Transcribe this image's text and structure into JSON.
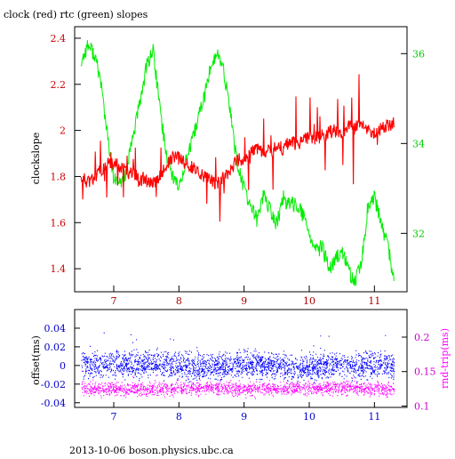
{
  "title": "clock (red) rtc (green) slopes",
  "footer": "2013-10-06  boson.physics.ubc.ca",
  "colors": {
    "clock": "#ff0000",
    "rtc": "#00ee00",
    "offset": "#0000ff",
    "roundtrip": "#ff00ff",
    "axes": "#000000"
  },
  "chart_data": [
    {
      "type": "line",
      "title": "clock (red) rtc (green) slopes",
      "ylabel": "clockslope",
      "xlim": [
        6.4,
        11.5
      ],
      "ylim": [
        1.3,
        2.45
      ],
      "y2lim": [
        30.7,
        36.6
      ],
      "x_ticks": [
        7,
        8,
        9,
        10,
        11
      ],
      "y_ticks": [
        1.4,
        1.6,
        1.8,
        2.0,
        2.2,
        2.4
      ],
      "y_tick_labels": [
        "1.4",
        "1.6",
        "1.8",
        "2",
        "2.2",
        "2.4"
      ],
      "y2_ticks": [
        32,
        34,
        36
      ],
      "grid": false,
      "series": [
        {
          "name": "clock",
          "axis": "left",
          "x": [
            6.5,
            6.6,
            6.7,
            6.8,
            6.9,
            7.0,
            7.1,
            7.2,
            7.3,
            7.4,
            7.5,
            7.6,
            7.7,
            7.8,
            7.9,
            8.0,
            8.1,
            8.2,
            8.3,
            8.4,
            8.5,
            8.6,
            8.7,
            8.8,
            8.9,
            9.0,
            9.1,
            9.2,
            9.3,
            9.4,
            9.5,
            9.6,
            9.7,
            9.8,
            9.9,
            10.0,
            10.1,
            10.2,
            10.3,
            10.4,
            10.5,
            10.6,
            10.7,
            10.8,
            10.9,
            11.0,
            11.1,
            11.2,
            11.3
          ],
          "values": [
            1.8,
            1.77,
            1.79,
            1.83,
            1.85,
            1.86,
            1.84,
            1.82,
            1.81,
            1.79,
            1.78,
            1.77,
            1.8,
            1.84,
            1.88,
            1.88,
            1.86,
            1.84,
            1.82,
            1.8,
            1.78,
            1.77,
            1.8,
            1.84,
            1.87,
            1.88,
            1.9,
            1.92,
            1.9,
            1.91,
            1.93,
            1.92,
            1.95,
            1.94,
            1.96,
            1.97,
            1.96,
            1.98,
            1.99,
            2.0,
            1.99,
            2.02,
            2.01,
            2.03,
            2.0,
            1.99,
            2.01,
            2.02,
            2.03
          ]
        },
        {
          "name": "rtc",
          "axis": "right",
          "x": [
            6.5,
            6.6,
            6.7,
            6.8,
            6.9,
            7.0,
            7.1,
            7.2,
            7.3,
            7.4,
            7.5,
            7.6,
            7.7,
            7.8,
            7.9,
            8.0,
            8.1,
            8.2,
            8.3,
            8.4,
            8.5,
            8.6,
            8.7,
            8.8,
            8.9,
            9.0,
            9.1,
            9.2,
            9.3,
            9.4,
            9.5,
            9.6,
            9.7,
            9.8,
            9.9,
            10.0,
            10.1,
            10.2,
            10.3,
            10.4,
            10.5,
            10.6,
            10.7,
            10.8,
            10.9,
            11.0,
            11.1,
            11.2,
            11.3
          ],
          "values": [
            35.8,
            36.2,
            36.0,
            35.4,
            34.2,
            33.2,
            33.1,
            33.4,
            34.2,
            34.9,
            35.7,
            36.1,
            34.9,
            33.8,
            33.3,
            33.0,
            33.6,
            34.0,
            34.6,
            35.1,
            35.8,
            36.0,
            35.5,
            34.6,
            33.5,
            33.0,
            32.6,
            32.3,
            32.9,
            32.5,
            32.2,
            32.8,
            32.6,
            32.7,
            32.4,
            32.0,
            31.6,
            31.7,
            31.2,
            31.4,
            31.6,
            31.2,
            30.9,
            31.3,
            32.6,
            32.8,
            32.2,
            31.8,
            30.9
          ]
        }
      ]
    },
    {
      "type": "scatter",
      "ylabel": "offset(ms)",
      "y2label": "rnd-trip(ms)",
      "xlim": [
        6.4,
        11.5
      ],
      "ylim": [
        -0.045,
        0.06
      ],
      "y2lim": [
        0.098,
        0.24
      ],
      "x_ticks": [
        7,
        8,
        9,
        10,
        11
      ],
      "y_ticks": [
        -0.04,
        -0.02,
        0.0,
        0.02,
        0.04
      ],
      "y_tick_labels": [
        "-0.04",
        "-0.02",
        "0",
        "0.02",
        "0.04"
      ],
      "y2_ticks": [
        0.1,
        0.15,
        0.2
      ],
      "y2_tick_labels": [
        "0.1",
        "0.15",
        "0.2"
      ],
      "grid": false,
      "series": [
        {
          "name": "offset",
          "axis": "left",
          "band_center": 0.0,
          "band_halfwidth": 0.02,
          "x": [
            6.5,
            7.0,
            7.5,
            8.0,
            8.5,
            9.0,
            9.5,
            10.0,
            10.5,
            11.0,
            11.3
          ],
          "values": [
            0.0,
            0.002,
            0.001,
            0.0,
            -0.001,
            0.001,
            0.0,
            -0.002,
            0.001,
            0.0,
            0.001
          ]
        },
        {
          "name": "roundtrip",
          "axis": "right",
          "band_center": 0.125,
          "band_halfwidth": 0.014,
          "x": [
            6.5,
            7.0,
            7.5,
            8.0,
            8.5,
            9.0,
            9.5,
            10.0,
            10.5,
            11.0,
            11.3
          ],
          "values": [
            0.126,
            0.124,
            0.125,
            0.125,
            0.126,
            0.124,
            0.125,
            0.125,
            0.126,
            0.125,
            0.124
          ]
        }
      ]
    }
  ]
}
